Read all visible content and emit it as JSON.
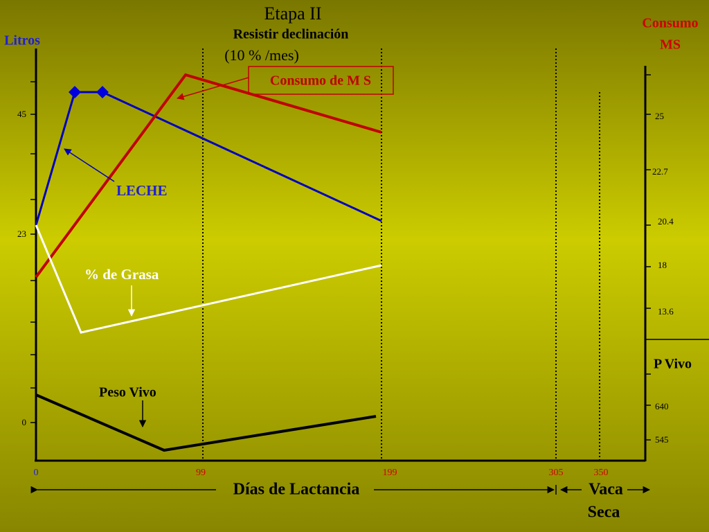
{
  "title": "Etapa II",
  "subtitle": [
    "Resistir declinación",
    "(10 % /mes)"
  ],
  "left_axis": {
    "label": "Litros",
    "ticks": [
      "45",
      "23",
      "0"
    ]
  },
  "right_axis": {
    "label": [
      "Consumo",
      "MS"
    ],
    "ticks": [
      "25",
      "22.7",
      "20.4",
      "18",
      "13.6"
    ]
  },
  "weight_axis": {
    "label": "P Vivo",
    "ticks": [
      "640",
      "545"
    ]
  },
  "x_axis": {
    "ticks": [
      "0",
      "99",
      "199",
      "305",
      "350"
    ],
    "label": "Días de Lactancia",
    "dry_label": [
      "Vaca",
      "Seca"
    ]
  },
  "annotations": {
    "intake": "Consumo de M S",
    "milk": "LECHE",
    "fat": "% de Grasa",
    "weight": "Peso Vivo"
  }
}
